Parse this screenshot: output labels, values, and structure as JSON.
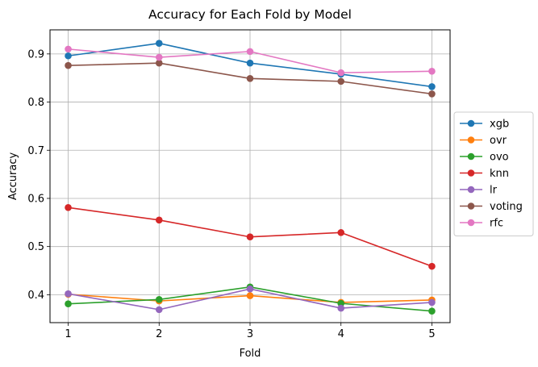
{
  "chart_data": {
    "type": "line",
    "title": "Accuracy for Each Fold by Model",
    "xlabel": "Fold",
    "ylabel": "Accuracy",
    "x": [
      1,
      2,
      3,
      4,
      5
    ],
    "xticks": [
      "1",
      "2",
      "3",
      "4",
      "5"
    ],
    "xlim": [
      0.8,
      5.2
    ],
    "ylim": [
      0.342,
      0.95
    ],
    "yticks": [
      "0.4",
      "0.5",
      "0.6",
      "0.7",
      "0.8",
      "0.9"
    ],
    "grid": true,
    "legend_position": "center-right-outside",
    "series": [
      {
        "name": "xgb",
        "color": "#1f77b4",
        "values": [
          0.896,
          0.922,
          0.881,
          0.858,
          0.832
        ]
      },
      {
        "name": "ovr",
        "color": "#ff7f0e",
        "values": [
          0.401,
          0.387,
          0.398,
          0.384,
          0.389
        ]
      },
      {
        "name": "ovo",
        "color": "#2ca02c",
        "values": [
          0.381,
          0.39,
          0.416,
          0.382,
          0.366
        ]
      },
      {
        "name": "knn",
        "color": "#d62728",
        "values": [
          0.581,
          0.555,
          0.52,
          0.529,
          0.459
        ]
      },
      {
        "name": "lr",
        "color": "#9467bd",
        "values": [
          0.402,
          0.369,
          0.412,
          0.372,
          0.384
        ]
      },
      {
        "name": "voting",
        "color": "#8c564b",
        "values": [
          0.876,
          0.881,
          0.849,
          0.843,
          0.817
        ]
      },
      {
        "name": "rfc",
        "color": "#e377c2",
        "values": [
          0.91,
          0.893,
          0.905,
          0.861,
          0.864
        ]
      }
    ]
  }
}
